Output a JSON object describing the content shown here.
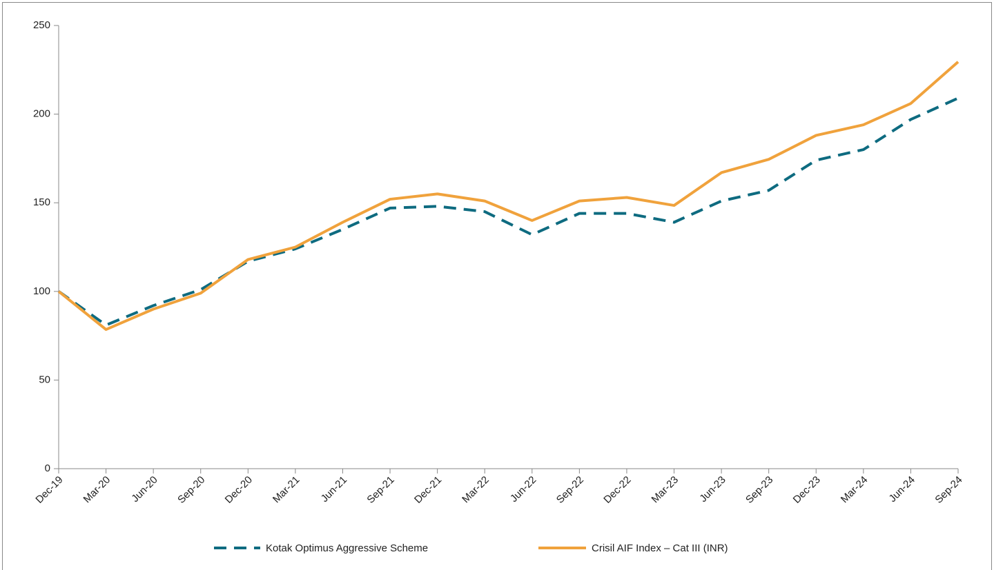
{
  "chart_data": {
    "type": "line",
    "categories": [
      "Dec-19",
      "Mar-20",
      "Jun-20",
      "Sep-20",
      "Dec-20",
      "Mar-21",
      "Jun-21",
      "Sep-21",
      "Dec-21",
      "Mar-22",
      "Jun-22",
      "Sep-22",
      "Dec-22",
      "Mar-23",
      "Jun-23",
      "Sep-23",
      "Dec-23",
      "Mar-24",
      "Jun-24",
      "Sep-24"
    ],
    "series": [
      {
        "name": "Kotak Optimus Aggressive Scheme",
        "color": "#0e6b80",
        "line_style": "dashed",
        "values": [
          100,
          81,
          92,
          101,
          117,
          124,
          135,
          147,
          148,
          145,
          132,
          144,
          144,
          139,
          151,
          157,
          174,
          180,
          197,
          209
        ]
      },
      {
        "name": "Crisil AIF Index – Cat III (INR)",
        "color": "#f0a23c",
        "line_style": "solid",
        "values": [
          100,
          78.5,
          90,
          99,
          118,
          125,
          139,
          152,
          155,
          151,
          140,
          151,
          153,
          148.5,
          167,
          174.5,
          188,
          194,
          206,
          229.5
        ]
      }
    ],
    "ylim": [
      0,
      250
    ],
    "yticks": [
      0,
      50,
      100,
      150,
      200,
      250
    ],
    "grid": false,
    "legend": "bottom"
  }
}
